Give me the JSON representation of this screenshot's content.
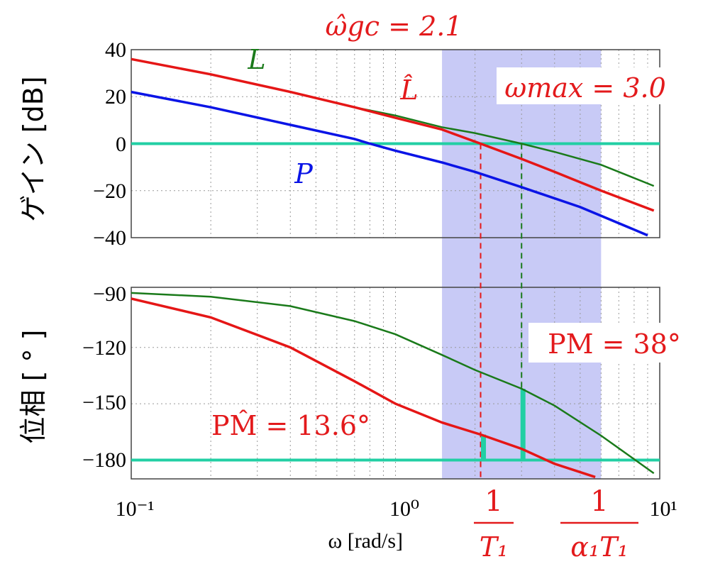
{
  "colors": {
    "P": "#0a14e6",
    "L": "#1a7a1a",
    "Lhat": "#e51616",
    "ref": "#22cfa4",
    "band": "#c8caf6",
    "annotation": "#e31a1c"
  },
  "chart_data": [
    {
      "type": "line",
      "panel": "gain",
      "ylabel": "ゲイン [dB]",
      "xscale": "log",
      "xlim": [
        0.1,
        10
      ],
      "ylim": [
        -40,
        40
      ],
      "yticks": [
        "40",
        "20",
        "0",
        "−20",
        "−40"
      ],
      "yticks_values": [
        40,
        20,
        0,
        -20,
        -40
      ],
      "series": [
        {
          "name": "L",
          "x": [
            0.1,
            0.2,
            0.4,
            0.7,
            1.0,
            1.5,
            2.0,
            3.0,
            4.0,
            6.0,
            9.5
          ],
          "y": [
            36,
            29.5,
            22,
            15.5,
            12,
            7,
            4.5,
            0,
            -3.5,
            -9,
            -18
          ]
        },
        {
          "name": "L̂",
          "x": [
            0.1,
            0.2,
            0.4,
            0.7,
            1.0,
            1.5,
            2.1,
            3.0,
            4.0,
            6.0,
            9.5
          ],
          "y": [
            36,
            29.5,
            22,
            15.5,
            11,
            6,
            0,
            -6.5,
            -12,
            -20,
            -28.5
          ]
        },
        {
          "name": "P",
          "x": [
            0.1,
            0.2,
            0.4,
            0.7,
            0.8,
            1.0,
            1.5,
            2.0,
            3.0,
            5.0,
            9.0
          ],
          "y": [
            22,
            15.5,
            8,
            2,
            0,
            -3,
            -8,
            -12,
            -18.5,
            -27,
            -39
          ]
        }
      ],
      "reference_line": {
        "y": 0
      },
      "annotations": {
        "top": "ω̂gc = 2.1",
        "wmax": "ωmax = 3.0",
        "L": "L",
        "Lhat": "L̂",
        "P": "P"
      }
    },
    {
      "type": "line",
      "panel": "phase",
      "ylabel": "位相 [ ° ]",
      "xscale": "log",
      "xlim": [
        0.1,
        10
      ],
      "ylim": [
        -190,
        -88
      ],
      "yticks": [
        "−90",
        "−120",
        "−150",
        "−180"
      ],
      "yticks_values": [
        -90,
        -120,
        -150,
        -180
      ],
      "xticks": [
        "10⁻¹",
        "10⁰",
        "10¹"
      ],
      "xlabel": "ω [rad/s]",
      "series": [
        {
          "name": "L",
          "x": [
            0.1,
            0.2,
            0.4,
            0.7,
            1.0,
            1.5,
            2.0,
            3.0,
            4.0,
            6.0,
            9.5
          ],
          "y": [
            -91,
            -93,
            -98,
            -106,
            -113,
            -124,
            -132,
            -142,
            -151,
            -167,
            -187
          ]
        },
        {
          "name": "L̂",
          "x": [
            0.1,
            0.2,
            0.4,
            0.7,
            1.0,
            1.5,
            2.1,
            3.0,
            4.0,
            6.0
          ],
          "y": [
            -94,
            -104,
            -120,
            -138,
            -150,
            -160,
            -166.4,
            -174,
            -182,
            -192
          ]
        }
      ],
      "reference_line": {
        "y": -180
      },
      "annotations": {
        "pm": "PM = 38°",
        "pmhat": "PM̂ = 13.6°",
        "pm_value": 38,
        "pmhat_value": 13.6
      }
    }
  ],
  "markers": {
    "wgc_hat": 2.1,
    "wmax": 3.0,
    "band": [
      1.5,
      6.0
    ]
  },
  "bottom_labels": {
    "one_a": "1",
    "one_b": "1",
    "t1": "T₁",
    "alpha_t1": "α₁T₁"
  }
}
